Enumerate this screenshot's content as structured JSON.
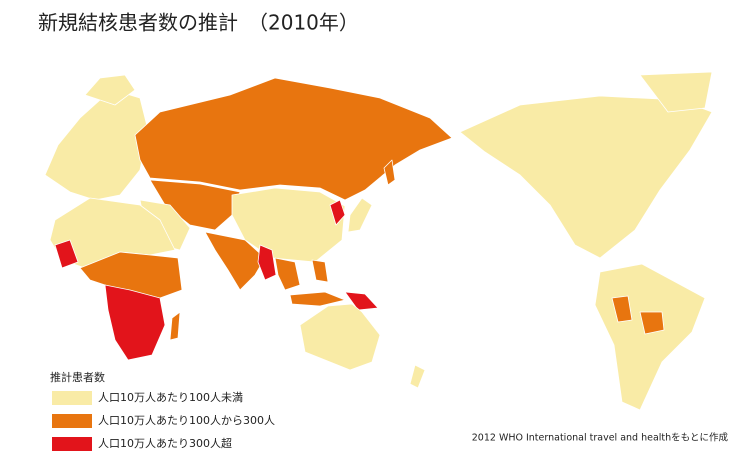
{
  "title": "新規結核患者数の推計　（2010年）",
  "legend": {
    "title": "推計患者数",
    "items": [
      {
        "label": "人口10万人あたり100人未満",
        "color": "#f9eba6"
      },
      {
        "label": "人口10万人あたり100人から300人",
        "color": "#e8750f"
      },
      {
        "label": "人口10万人あたり300人超",
        "color": "#e2141b"
      }
    ]
  },
  "source": "2012 WHO International travel and healthをもとに作成"
}
